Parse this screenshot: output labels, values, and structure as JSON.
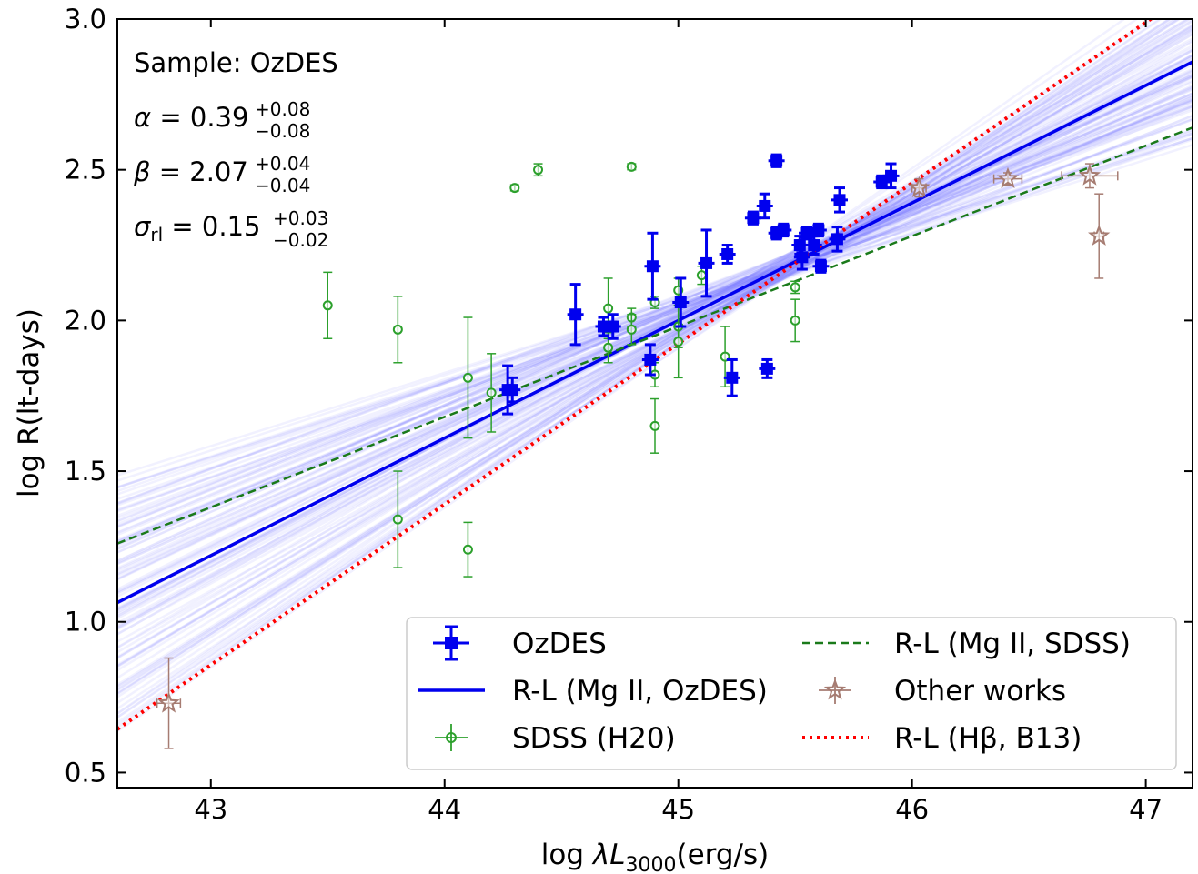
{
  "chart_data": {
    "type": "scatter",
    "xlabel": "log λL3000(erg/s)",
    "ylabel": "log R(lt-days)",
    "xlim": [
      42.6,
      47.2
    ],
    "ylim": [
      0.45,
      3.0
    ],
    "xticks": [
      "43",
      "44",
      "45",
      "46",
      "47"
    ],
    "yticks": [
      "0.5",
      "1.0",
      "1.5",
      "2.0",
      "2.5",
      "3.0"
    ],
    "grid": false,
    "legend_position": "lower-right",
    "annotations": {
      "sample": "Sample: OzDES",
      "alpha": {
        "symbol": "α",
        "value": "0.39",
        "plus": "+0.08",
        "minus": "−0.08"
      },
      "beta": {
        "symbol": "β",
        "value": "2.07",
        "plus": "+0.04",
        "minus": "−0.04"
      },
      "sigma": {
        "symbol": "σ",
        "sub": "rl",
        "value": "0.15",
        "plus": "+0.03",
        "minus": "−0.02"
      }
    },
    "series": [
      {
        "name": "OzDES",
        "marker": "square",
        "color": "#0000ee",
        "points": [
          [
            44.27,
            1.77,
            0.08
          ],
          [
            44.29,
            1.77,
            0.04
          ],
          [
            44.56,
            2.02,
            0.1
          ],
          [
            44.68,
            1.98,
            0.03
          ],
          [
            44.72,
            1.98,
            0.04
          ],
          [
            44.88,
            1.87,
            0.05
          ],
          [
            44.89,
            2.18,
            0.11
          ],
          [
            45.01,
            2.06,
            0.08
          ],
          [
            45.12,
            2.19,
            0.11
          ],
          [
            45.21,
            2.22,
            0.03
          ],
          [
            45.23,
            1.81,
            0.06
          ],
          [
            45.32,
            2.34,
            0.02
          ],
          [
            45.37,
            2.38,
            0.04
          ],
          [
            45.38,
            1.84,
            0.03
          ],
          [
            45.42,
            2.53,
            0.02
          ],
          [
            45.42,
            2.29,
            0.02
          ],
          [
            45.45,
            2.3,
            0.02
          ],
          [
            45.52,
            2.25,
            0.03
          ],
          [
            45.53,
            2.21,
            0.04
          ],
          [
            45.55,
            2.29,
            0.02
          ],
          [
            45.58,
            2.25,
            0.03
          ],
          [
            45.6,
            2.3,
            0.02
          ],
          [
            45.61,
            2.18,
            0.02
          ],
          [
            45.68,
            2.27,
            0.04
          ],
          [
            45.69,
            2.4,
            0.04
          ],
          [
            45.87,
            2.46,
            0.02
          ],
          [
            45.91,
            2.48,
            0.04
          ]
        ]
      },
      {
        "name": "SDSS (H20)",
        "marker": "circle-open",
        "color": "#2ca02c",
        "points": [
          [
            43.5,
            2.05,
            0.11
          ],
          [
            43.8,
            1.97,
            0.11
          ],
          [
            43.8,
            1.34,
            0.16
          ],
          [
            44.1,
            1.81,
            0.2
          ],
          [
            44.1,
            1.24,
            0.09
          ],
          [
            44.2,
            1.76,
            0.13
          ],
          [
            44.3,
            2.44,
            0.01
          ],
          [
            44.4,
            2.5,
            0.02
          ],
          [
            44.7,
            2.04,
            0.1
          ],
          [
            44.7,
            1.91,
            0.05
          ],
          [
            44.8,
            2.01,
            0.03
          ],
          [
            44.8,
            1.97,
            0.05
          ],
          [
            44.8,
            2.51,
            0.01
          ],
          [
            44.9,
            2.06,
            0.02
          ],
          [
            44.9,
            1.82,
            0.04
          ],
          [
            44.9,
            1.65,
            0.09
          ],
          [
            45.0,
            2.1,
            0.04
          ],
          [
            45.0,
            1.98,
            0.07
          ],
          [
            45.0,
            1.93,
            0.12
          ],
          [
            45.1,
            2.15,
            0.03
          ],
          [
            45.2,
            1.88,
            0.1
          ],
          [
            45.5,
            2.11,
            0.02
          ],
          [
            45.5,
            2.0,
            0.07
          ]
        ]
      },
      {
        "name": "Other works",
        "marker": "star-open",
        "color": "#a67c72",
        "points": [
          [
            42.82,
            0.73,
            0.15,
            0.05
          ],
          [
            46.03,
            2.44,
            0.03,
            0.03
          ],
          [
            46.41,
            2.47,
            0.02,
            0.06
          ],
          [
            46.76,
            2.48,
            0.04,
            0.12
          ],
          [
            46.8,
            2.28,
            0.14,
            0.02
          ]
        ]
      }
    ],
    "fits": [
      {
        "name": "R-L (Mg II, OzDES)",
        "style": "solid",
        "color": "#0000ee",
        "slope": 0.39,
        "intercept_at_44": 1.61
      },
      {
        "name": "R-L (Mg II, SDSS)",
        "style": "dashed",
        "color": "#1a7a1a",
        "slope": 0.3,
        "intercept_at_44": 1.68
      },
      {
        "name": "R-L (Hβ, B13)",
        "style": "dotted",
        "color": "#ff0000",
        "slope": 0.533,
        "intercept_at_44": 1.39
      }
    ]
  }
}
